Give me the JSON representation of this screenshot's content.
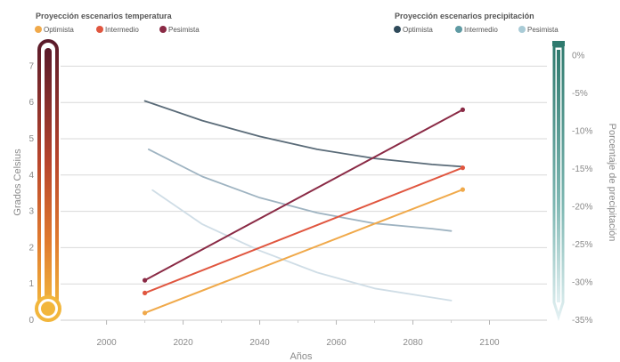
{
  "chart_data": {
    "type": "line",
    "x_ticks": [
      2000,
      2020,
      2040,
      2060,
      2080,
      2100
    ],
    "xlim": [
      1988,
      2115
    ],
    "xlabel": "Años",
    "left_axis": {
      "label": "Grados Celsius",
      "ticks": [
        0,
        1,
        2,
        3,
        4,
        5,
        6,
        7
      ],
      "ylim": [
        0,
        7.5
      ]
    },
    "right_axis": {
      "label": "Porcentaje de precipitación",
      "ticks": [
        "0%",
        "-5%",
        "-10%",
        "-15%",
        "-20%",
        "-25%",
        "-30%",
        "-35%"
      ],
      "values": [
        0,
        -5,
        -10,
        -15,
        -20,
        -25,
        -30,
        -35
      ],
      "ylim": [
        -35,
        1
      ]
    },
    "grid": true,
    "legends": {
      "temperature": {
        "title": "Proyección escenarios temperatura",
        "items": [
          "Optimista",
          "Intermedio",
          "Pesimista"
        ]
      },
      "precipitation": {
        "title": "Proyección escenarios precipitación",
        "items": [
          "Optimista",
          "Intermedio",
          "Pesimista"
        ]
      }
    },
    "temperature_series": [
      {
        "name": "Optimista",
        "color": "#f0a94a",
        "x": [
          2010,
          2093
        ],
        "y": [
          0.2,
          3.6
        ]
      },
      {
        "name": "Intermedio",
        "color": "#e0563f",
        "x": [
          2010,
          2093
        ],
        "y": [
          0.75,
          4.2
        ]
      },
      {
        "name": "Pesimista",
        "color": "#8a2a45",
        "x": [
          2010,
          2093
        ],
        "y": [
          1.1,
          5.8
        ]
      }
    ],
    "precipitation_series": [
      {
        "name": "Optimista",
        "color": "#5a6b78",
        "x": [
          2010,
          2025,
          2040,
          2055,
          2070,
          2085,
          2093
        ],
        "y": [
          -6.0,
          -8.6,
          -10.7,
          -12.4,
          -13.6,
          -14.4,
          -14.7
        ]
      },
      {
        "name": "Intermedio",
        "color": "#9eb3c1",
        "x": [
          2011,
          2025,
          2040,
          2055,
          2070,
          2085,
          2090
        ],
        "y": [
          -12.4,
          -16.0,
          -18.8,
          -20.8,
          -22.2,
          -22.9,
          -23.2
        ]
      },
      {
        "name": "Pesimista",
        "color": "#cfdde6",
        "x": [
          2012,
          2025,
          2040,
          2055,
          2070,
          2085,
          2090
        ],
        "y": [
          -17.8,
          -22.3,
          -25.8,
          -28.7,
          -30.8,
          -32.0,
          -32.4
        ]
      }
    ],
    "colors": {
      "temp_optimista": "#f0a94a",
      "temp_intermedio": "#e0563f",
      "temp_pesimista": "#8a2a45",
      "prec_optimista": "#2f4a5a",
      "prec_intermedio": "#5f9aa3",
      "prec_pesimista": "#a9cbd6",
      "grid": "#d9d9d9",
      "thermometer_top": "#5a1a2a",
      "thermometer_mid": "#d0632e",
      "thermometer_bottom": "#f2b63c",
      "gauge_top": "#2f7a6e",
      "gauge_bottom": "#cfe6ea"
    }
  }
}
